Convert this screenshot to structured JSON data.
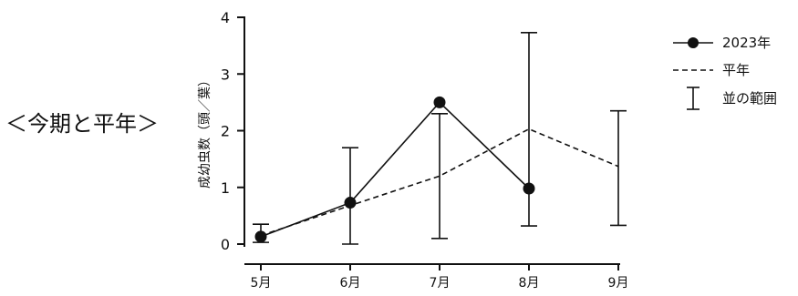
{
  "side_title": "＜今期と平年＞",
  "chart_data": {
    "type": "line",
    "xlabel": "",
    "ylabel": "成幼虫数（頭／葉）",
    "categories": [
      "5月",
      "6月",
      "7月",
      "8月",
      "9月"
    ],
    "ylim": [
      0,
      4
    ],
    "yticks": [
      0,
      1,
      2,
      3,
      4
    ],
    "grid": false,
    "legend_position": "right",
    "series": [
      {
        "name": "2023年",
        "style": "solid-with-circle-markers",
        "values": [
          0.13,
          0.73,
          2.5,
          0.98,
          null
        ]
      },
      {
        "name": "平年",
        "style": "dashed",
        "values": [
          0.15,
          0.68,
          1.2,
          2.03,
          1.37
        ]
      }
    ],
    "range": {
      "name": "並の範囲",
      "low": [
        0.03,
        0.0,
        0.1,
        0.32,
        0.33
      ],
      "high": [
        0.35,
        1.7,
        2.3,
        3.73,
        2.35
      ]
    }
  }
}
